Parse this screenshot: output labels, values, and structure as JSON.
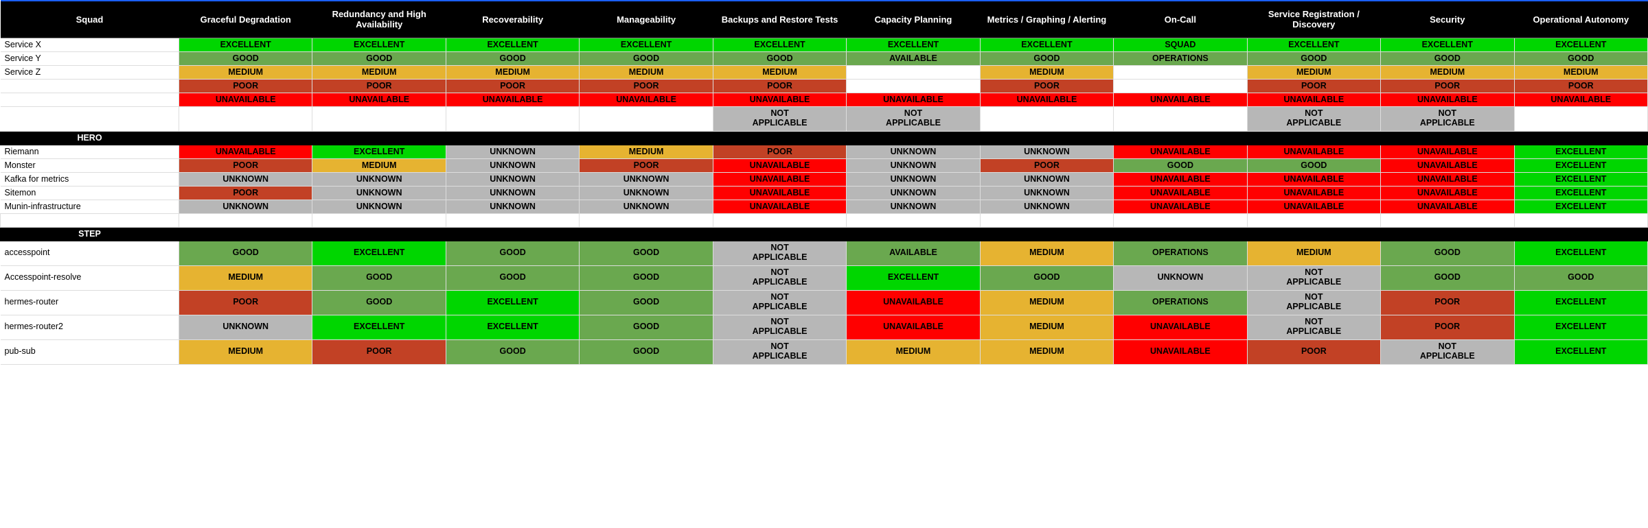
{
  "statusColors": {
    "EXCELLENT": {
      "bg": "#00d600",
      "fg": "#000000"
    },
    "GOOD": {
      "bg": "#6aa84f",
      "fg": "#000000"
    },
    "MEDIUM": {
      "bg": "#e6b331",
      "fg": "#000000"
    },
    "POOR": {
      "bg": "#c24125",
      "fg": "#000000"
    },
    "UNAVAILABLE": {
      "bg": "#ff0000",
      "fg": "#000000"
    },
    "UNKNOWN": {
      "bg": "#b7b7b7",
      "fg": "#000000"
    },
    "NOT APPLICABLE": {
      "bg": "#b7b7b7",
      "fg": "#000000"
    },
    "AVAILABLE": {
      "bg": "#6aa84f",
      "fg": "#000000"
    },
    "SQUAD": {
      "bg": "#00d600",
      "fg": "#000000"
    },
    "OPERATIONS": {
      "bg": "#6aa84f",
      "fg": "#000000"
    },
    "": {
      "bg": "#ffffff",
      "fg": "#000000"
    }
  },
  "columns": [
    "Squad",
    "Graceful Degradation",
    "Redundancy and High Availability",
    "Recoverability",
    "Manageability",
    "Backups and Restore Tests",
    "Capacity Planning",
    "Metrics / Graphing / Alerting",
    "On-Call",
    "Service Registration / Discovery",
    "Security",
    "Operational Autonomy"
  ],
  "rows": [
    {
      "type": "data",
      "label": "Service X",
      "cells": [
        "EXCELLENT",
        "EXCELLENT",
        "EXCELLENT",
        "EXCELLENT",
        "EXCELLENT",
        "EXCELLENT",
        "EXCELLENT",
        "SQUAD",
        "EXCELLENT",
        "EXCELLENT",
        "EXCELLENT"
      ]
    },
    {
      "type": "data",
      "label": "Service Y",
      "cells": [
        "GOOD",
        "GOOD",
        "GOOD",
        "GOOD",
        "GOOD",
        "AVAILABLE",
        "GOOD",
        "OPERATIONS",
        "GOOD",
        "GOOD",
        "GOOD"
      ]
    },
    {
      "type": "data",
      "label": "Service Z",
      "cells": [
        "MEDIUM",
        "MEDIUM",
        "MEDIUM",
        "MEDIUM",
        "MEDIUM",
        "",
        "MEDIUM",
        "",
        "MEDIUM",
        "MEDIUM",
        "MEDIUM"
      ]
    },
    {
      "type": "data",
      "label": "",
      "cells": [
        "POOR",
        "POOR",
        "POOR",
        "POOR",
        "POOR",
        "",
        "POOR",
        "",
        "POOR",
        "POOR",
        "POOR"
      ]
    },
    {
      "type": "data",
      "label": "",
      "cells": [
        "UNAVAILABLE",
        "UNAVAILABLE",
        "UNAVAILABLE",
        "UNAVAILABLE",
        "UNAVAILABLE",
        "UNAVAILABLE",
        "UNAVAILABLE",
        "UNAVAILABLE",
        "UNAVAILABLE",
        "UNAVAILABLE",
        "UNAVAILABLE"
      ]
    },
    {
      "type": "data",
      "label": "",
      "tall": true,
      "cells": [
        "",
        "",
        "",
        "",
        "NOT APPLICABLE",
        "NOT APPLICABLE",
        "",
        "",
        "NOT APPLICABLE",
        "NOT APPLICABLE",
        ""
      ]
    },
    {
      "type": "section",
      "label": "HERO"
    },
    {
      "type": "data",
      "label": "Riemann",
      "cells": [
        "UNAVAILABLE",
        "EXCELLENT",
        "UNKNOWN",
        "MEDIUM",
        "POOR",
        "UNKNOWN",
        "UNKNOWN",
        "UNAVAILABLE",
        "UNAVAILABLE",
        "UNAVAILABLE",
        "EXCELLENT"
      ]
    },
    {
      "type": "data",
      "label": "Monster",
      "cells": [
        "POOR",
        "MEDIUM",
        "UNKNOWN",
        "POOR",
        "UNAVAILABLE",
        "UNKNOWN",
        "POOR",
        "GOOD",
        "GOOD",
        "UNAVAILABLE",
        "EXCELLENT"
      ]
    },
    {
      "type": "data",
      "label": "Kafka for metrics",
      "cells": [
        "UNKNOWN",
        "UNKNOWN",
        "UNKNOWN",
        "UNKNOWN",
        "UNAVAILABLE",
        "UNKNOWN",
        "UNKNOWN",
        "UNAVAILABLE",
        "UNAVAILABLE",
        "UNAVAILABLE",
        "EXCELLENT"
      ]
    },
    {
      "type": "data",
      "label": "Sitemon",
      "cells": [
        "POOR",
        "UNKNOWN",
        "UNKNOWN",
        "UNKNOWN",
        "UNAVAILABLE",
        "UNKNOWN",
        "UNKNOWN",
        "UNAVAILABLE",
        "UNAVAILABLE",
        "UNAVAILABLE",
        "EXCELLENT"
      ]
    },
    {
      "type": "data",
      "label": "Munin-infrastructure",
      "cells": [
        "UNKNOWN",
        "UNKNOWN",
        "UNKNOWN",
        "UNKNOWN",
        "UNAVAILABLE",
        "UNKNOWN",
        "UNKNOWN",
        "UNAVAILABLE",
        "UNAVAILABLE",
        "UNAVAILABLE",
        "EXCELLENT"
      ]
    },
    {
      "type": "blank"
    },
    {
      "type": "section",
      "label": "STEP"
    },
    {
      "type": "data",
      "label": "accesspoint",
      "tall": true,
      "cells": [
        "GOOD",
        "EXCELLENT",
        "GOOD",
        "GOOD",
        "NOT APPLICABLE",
        "AVAILABLE",
        "MEDIUM",
        "OPERATIONS",
        "MEDIUM",
        "GOOD",
        "EXCELLENT"
      ]
    },
    {
      "type": "data",
      "label": "Accesspoint-resolve",
      "tall": true,
      "cells": [
        "MEDIUM",
        "GOOD",
        "GOOD",
        "GOOD",
        "NOT APPLICABLE",
        "EXCELLENT",
        "GOOD",
        "UNKNOWN",
        "NOT APPLICABLE",
        "GOOD",
        "GOOD"
      ]
    },
    {
      "type": "data",
      "label": "hermes-router",
      "tall": true,
      "cells": [
        "POOR",
        "GOOD",
        "EXCELLENT",
        "GOOD",
        "NOT APPLICABLE",
        "UNAVAILABLE",
        "MEDIUM",
        "OPERATIONS",
        "NOT APPLICABLE",
        "POOR",
        "EXCELLENT"
      ]
    },
    {
      "type": "data",
      "label": "hermes-router2",
      "tall": true,
      "cells": [
        "UNKNOWN",
        "EXCELLENT",
        "EXCELLENT",
        "GOOD",
        "NOT APPLICABLE",
        "UNAVAILABLE",
        "MEDIUM",
        "UNAVAILABLE",
        "NOT APPLICABLE",
        "POOR",
        "EXCELLENT"
      ]
    },
    {
      "type": "data",
      "label": "pub-sub",
      "tall": true,
      "cells": [
        "MEDIUM",
        "POOR",
        "GOOD",
        "GOOD",
        "NOT APPLICABLE",
        "MEDIUM",
        "MEDIUM",
        "UNAVAILABLE",
        "POOR",
        "NOT APPLICABLE",
        "EXCELLENT"
      ]
    }
  ]
}
